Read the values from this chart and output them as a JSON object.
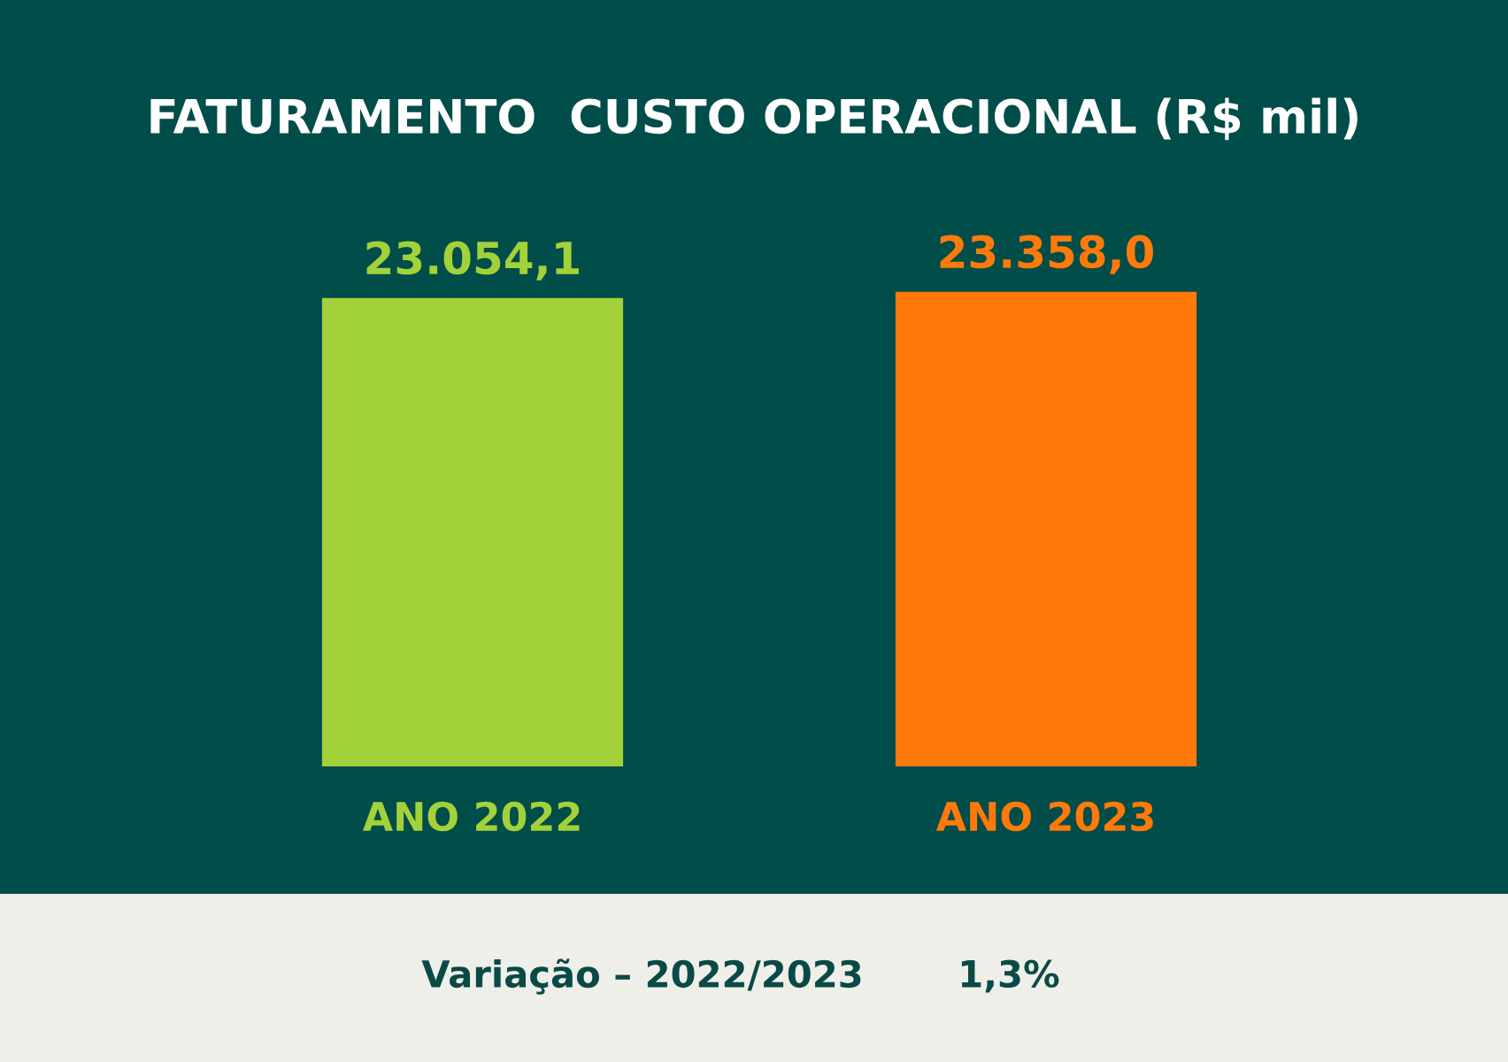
{
  "chart_data": {
    "type": "bar",
    "title": "FATURAMENTO  CUSTO OPERACIONAL (R$ mil)",
    "categories": [
      "ANO 2022",
      "ANO 2023"
    ],
    "values": [
      23054.1,
      23358.0
    ],
    "colors": [
      "#a3d139",
      "#ff7a0a"
    ],
    "value_labels": [
      "23.054,1",
      "23.358,0"
    ],
    "annotations": [
      "Variação – 2022/2023",
      "1,3%"
    ],
    "grid": false,
    "legend": false
  }
}
